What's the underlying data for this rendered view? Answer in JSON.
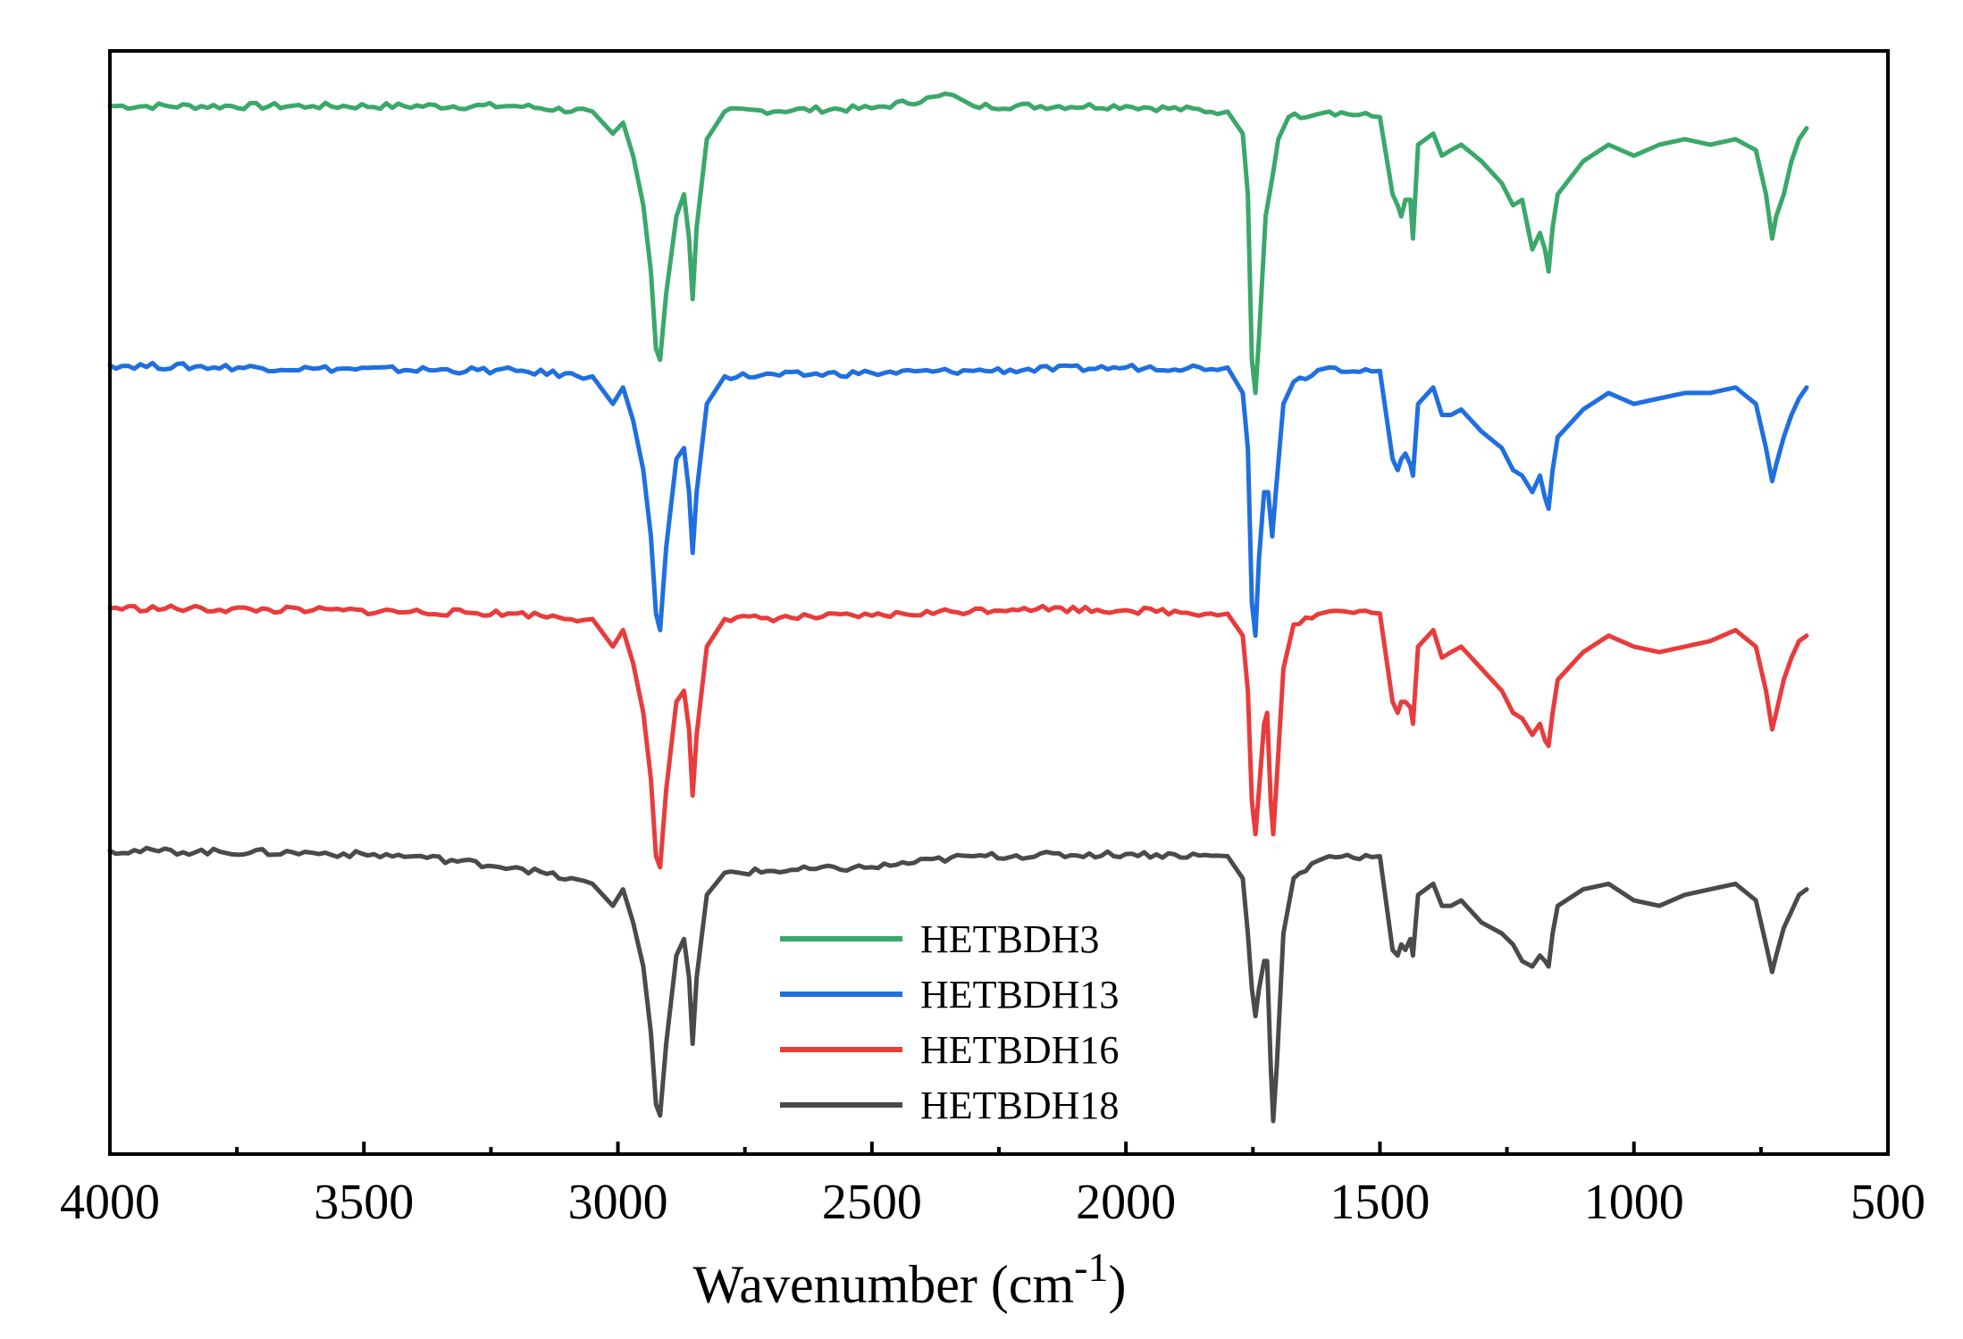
{
  "chart_data": {
    "type": "line",
    "title": "",
    "xlabel": "Wavenumber (cm",
    "xlabel_superscript": "-1",
    "xlabel_suffix": ")",
    "ylabel": "",
    "xlim": [
      4000,
      500
    ],
    "x_reversed": true,
    "x_ticks": [
      4000,
      3500,
      3000,
      2500,
      2000,
      1500,
      1000,
      500
    ],
    "y_ticks_shown": false,
    "grid": false,
    "legend_position": "bottom-center",
    "series": [
      {
        "name": "HETBDH3",
        "color": "#3aa86a",
        "baseline": 0.95,
        "points": [
          [
            4000,
            0.95
          ],
          [
            3600,
            0.95
          ],
          [
            3200,
            0.95
          ],
          [
            3050,
            0.945
          ],
          [
            3010,
            0.925
          ],
          [
            2990,
            0.935
          ],
          [
            2970,
            0.905
          ],
          [
            2950,
            0.86
          ],
          [
            2935,
            0.8
          ],
          [
            2925,
            0.73
          ],
          [
            2917,
            0.72
          ],
          [
            2905,
            0.78
          ],
          [
            2885,
            0.85
          ],
          [
            2870,
            0.87
          ],
          [
            2860,
            0.83
          ],
          [
            2853,
            0.775
          ],
          [
            2845,
            0.84
          ],
          [
            2825,
            0.92
          ],
          [
            2790,
            0.945
          ],
          [
            2500,
            0.948
          ],
          [
            2340,
            0.96
          ],
          [
            2300,
            0.95
          ],
          [
            2000,
            0.95
          ],
          [
            1800,
            0.945
          ],
          [
            1770,
            0.925
          ],
          [
            1760,
            0.87
          ],
          [
            1752,
            0.72
          ],
          [
            1745,
            0.69
          ],
          [
            1738,
            0.74
          ],
          [
            1725,
            0.85
          ],
          [
            1710,
            0.89
          ],
          [
            1700,
            0.92
          ],
          [
            1680,
            0.94
          ],
          [
            1600,
            0.945
          ],
          [
            1500,
            0.94
          ],
          [
            1475,
            0.87
          ],
          [
            1465,
            0.86
          ],
          [
            1458,
            0.85
          ],
          [
            1450,
            0.865
          ],
          [
            1440,
            0.865
          ],
          [
            1435,
            0.83
          ],
          [
            1425,
            0.915
          ],
          [
            1395,
            0.925
          ],
          [
            1378,
            0.905
          ],
          [
            1360,
            0.91
          ],
          [
            1340,
            0.915
          ],
          [
            1300,
            0.9
          ],
          [
            1260,
            0.88
          ],
          [
            1238,
            0.86
          ],
          [
            1220,
            0.865
          ],
          [
            1200,
            0.82
          ],
          [
            1185,
            0.835
          ],
          [
            1175,
            0.82
          ],
          [
            1168,
            0.8
          ],
          [
            1160,
            0.84
          ],
          [
            1150,
            0.87
          ],
          [
            1100,
            0.9
          ],
          [
            1050,
            0.915
          ],
          [
            1000,
            0.905
          ],
          [
            950,
            0.915
          ],
          [
            900,
            0.92
          ],
          [
            850,
            0.915
          ],
          [
            800,
            0.92
          ],
          [
            760,
            0.91
          ],
          [
            740,
            0.87
          ],
          [
            728,
            0.83
          ],
          [
            720,
            0.85
          ],
          [
            705,
            0.87
          ],
          [
            690,
            0.9
          ],
          [
            675,
            0.92
          ],
          [
            660,
            0.93
          ]
        ]
      },
      {
        "name": "HETBDH13",
        "color": "#1f6fe0",
        "baseline": 0.715,
        "points": [
          [
            4000,
            0.715
          ],
          [
            3600,
            0.712
          ],
          [
            3200,
            0.71
          ],
          [
            3050,
            0.705
          ],
          [
            3010,
            0.68
          ],
          [
            2990,
            0.695
          ],
          [
            2970,
            0.665
          ],
          [
            2950,
            0.62
          ],
          [
            2935,
            0.56
          ],
          [
            2925,
            0.49
          ],
          [
            2917,
            0.475
          ],
          [
            2905,
            0.55
          ],
          [
            2885,
            0.63
          ],
          [
            2870,
            0.64
          ],
          [
            2860,
            0.6
          ],
          [
            2853,
            0.545
          ],
          [
            2845,
            0.6
          ],
          [
            2825,
            0.68
          ],
          [
            2790,
            0.705
          ],
          [
            2500,
            0.708
          ],
          [
            2300,
            0.71
          ],
          [
            2000,
            0.713
          ],
          [
            1800,
            0.713
          ],
          [
            1770,
            0.69
          ],
          [
            1760,
            0.64
          ],
          [
            1752,
            0.5
          ],
          [
            1745,
            0.47
          ],
          [
            1738,
            0.54
          ],
          [
            1728,
            0.6
          ],
          [
            1720,
            0.6
          ],
          [
            1712,
            0.56
          ],
          [
            1705,
            0.6
          ],
          [
            1690,
            0.68
          ],
          [
            1670,
            0.7
          ],
          [
            1600,
            0.713
          ],
          [
            1500,
            0.71
          ],
          [
            1475,
            0.63
          ],
          [
            1465,
            0.62
          ],
          [
            1458,
            0.63
          ],
          [
            1450,
            0.635
          ],
          [
            1440,
            0.625
          ],
          [
            1435,
            0.615
          ],
          [
            1425,
            0.68
          ],
          [
            1395,
            0.695
          ],
          [
            1378,
            0.67
          ],
          [
            1360,
            0.67
          ],
          [
            1340,
            0.675
          ],
          [
            1300,
            0.655
          ],
          [
            1260,
            0.64
          ],
          [
            1238,
            0.62
          ],
          [
            1220,
            0.615
          ],
          [
            1200,
            0.6
          ],
          [
            1185,
            0.615
          ],
          [
            1175,
            0.595
          ],
          [
            1168,
            0.585
          ],
          [
            1160,
            0.62
          ],
          [
            1150,
            0.65
          ],
          [
            1100,
            0.675
          ],
          [
            1050,
            0.69
          ],
          [
            1000,
            0.68
          ],
          [
            950,
            0.685
          ],
          [
            900,
            0.69
          ],
          [
            850,
            0.69
          ],
          [
            800,
            0.695
          ],
          [
            760,
            0.68
          ],
          [
            740,
            0.64
          ],
          [
            728,
            0.61
          ],
          [
            720,
            0.625
          ],
          [
            705,
            0.65
          ],
          [
            690,
            0.67
          ],
          [
            675,
            0.685
          ],
          [
            660,
            0.695
          ]
        ]
      },
      {
        "name": "HETBDH16",
        "color": "#e83c3c",
        "baseline": 0.495,
        "points": [
          [
            4000,
            0.495
          ],
          [
            3600,
            0.493
          ],
          [
            3200,
            0.49
          ],
          [
            3050,
            0.485
          ],
          [
            3010,
            0.46
          ],
          [
            2990,
            0.475
          ],
          [
            2970,
            0.445
          ],
          [
            2950,
            0.4
          ],
          [
            2935,
            0.34
          ],
          [
            2925,
            0.27
          ],
          [
            2917,
            0.26
          ],
          [
            2905,
            0.33
          ],
          [
            2885,
            0.41
          ],
          [
            2870,
            0.42
          ],
          [
            2860,
            0.385
          ],
          [
            2853,
            0.325
          ],
          [
            2845,
            0.38
          ],
          [
            2825,
            0.46
          ],
          [
            2790,
            0.485
          ],
          [
            2500,
            0.488
          ],
          [
            2200,
            0.495
          ],
          [
            2000,
            0.493
          ],
          [
            1800,
            0.49
          ],
          [
            1770,
            0.47
          ],
          [
            1760,
            0.42
          ],
          [
            1752,
            0.32
          ],
          [
            1745,
            0.29
          ],
          [
            1738,
            0.33
          ],
          [
            1728,
            0.39
          ],
          [
            1722,
            0.4
          ],
          [
            1715,
            0.32
          ],
          [
            1710,
            0.29
          ],
          [
            1703,
            0.34
          ],
          [
            1690,
            0.44
          ],
          [
            1670,
            0.48
          ],
          [
            1600,
            0.492
          ],
          [
            1500,
            0.49
          ],
          [
            1475,
            0.41
          ],
          [
            1465,
            0.4
          ],
          [
            1458,
            0.41
          ],
          [
            1450,
            0.41
          ],
          [
            1440,
            0.405
          ],
          [
            1435,
            0.39
          ],
          [
            1425,
            0.46
          ],
          [
            1395,
            0.475
          ],
          [
            1378,
            0.45
          ],
          [
            1360,
            0.455
          ],
          [
            1340,
            0.46
          ],
          [
            1300,
            0.44
          ],
          [
            1260,
            0.42
          ],
          [
            1238,
            0.4
          ],
          [
            1220,
            0.395
          ],
          [
            1200,
            0.38
          ],
          [
            1185,
            0.39
          ],
          [
            1175,
            0.375
          ],
          [
            1168,
            0.37
          ],
          [
            1160,
            0.4
          ],
          [
            1150,
            0.43
          ],
          [
            1100,
            0.455
          ],
          [
            1050,
            0.47
          ],
          [
            1000,
            0.46
          ],
          [
            950,
            0.455
          ],
          [
            900,
            0.46
          ],
          [
            850,
            0.465
          ],
          [
            800,
            0.475
          ],
          [
            760,
            0.46
          ],
          [
            740,
            0.42
          ],
          [
            728,
            0.385
          ],
          [
            720,
            0.4
          ],
          [
            705,
            0.43
          ],
          [
            690,
            0.45
          ],
          [
            675,
            0.465
          ],
          [
            660,
            0.47
          ]
        ]
      },
      {
        "name": "HETBDH18",
        "color": "#4a4a4a",
        "baseline": 0.275,
        "points": [
          [
            4000,
            0.275
          ],
          [
            3600,
            0.273
          ],
          [
            3400,
            0.27
          ],
          [
            3200,
            0.26
          ],
          [
            3050,
            0.245
          ],
          [
            3010,
            0.225
          ],
          [
            2990,
            0.24
          ],
          [
            2970,
            0.21
          ],
          [
            2950,
            0.17
          ],
          [
            2935,
            0.11
          ],
          [
            2925,
            0.045
          ],
          [
            2917,
            0.035
          ],
          [
            2905,
            0.1
          ],
          [
            2885,
            0.18
          ],
          [
            2870,
            0.195
          ],
          [
            2860,
            0.16
          ],
          [
            2853,
            0.1
          ],
          [
            2845,
            0.16
          ],
          [
            2825,
            0.235
          ],
          [
            2790,
            0.255
          ],
          [
            2500,
            0.26
          ],
          [
            2300,
            0.27
          ],
          [
            2000,
            0.272
          ],
          [
            1800,
            0.27
          ],
          [
            1770,
            0.25
          ],
          [
            1760,
            0.2
          ],
          [
            1752,
            0.15
          ],
          [
            1745,
            0.125
          ],
          [
            1738,
            0.15
          ],
          [
            1728,
            0.175
          ],
          [
            1722,
            0.175
          ],
          [
            1715,
            0.08
          ],
          [
            1710,
            0.03
          ],
          [
            1703,
            0.08
          ],
          [
            1690,
            0.2
          ],
          [
            1670,
            0.25
          ],
          [
            1600,
            0.27
          ],
          [
            1500,
            0.27
          ],
          [
            1475,
            0.185
          ],
          [
            1465,
            0.18
          ],
          [
            1458,
            0.19
          ],
          [
            1450,
            0.185
          ],
          [
            1440,
            0.195
          ],
          [
            1435,
            0.18
          ],
          [
            1425,
            0.235
          ],
          [
            1395,
            0.245
          ],
          [
            1378,
            0.225
          ],
          [
            1360,
            0.225
          ],
          [
            1340,
            0.23
          ],
          [
            1300,
            0.21
          ],
          [
            1260,
            0.2
          ],
          [
            1238,
            0.19
          ],
          [
            1220,
            0.175
          ],
          [
            1200,
            0.17
          ],
          [
            1185,
            0.18
          ],
          [
            1175,
            0.175
          ],
          [
            1168,
            0.17
          ],
          [
            1160,
            0.2
          ],
          [
            1150,
            0.225
          ],
          [
            1100,
            0.24
          ],
          [
            1050,
            0.245
          ],
          [
            1000,
            0.23
          ],
          [
            950,
            0.225
          ],
          [
            900,
            0.235
          ],
          [
            850,
            0.24
          ],
          [
            800,
            0.245
          ],
          [
            760,
            0.23
          ],
          [
            740,
            0.19
          ],
          [
            728,
            0.165
          ],
          [
            720,
            0.18
          ],
          [
            705,
            0.205
          ],
          [
            690,
            0.22
          ],
          [
            675,
            0.235
          ],
          [
            660,
            0.24
          ]
        ]
      }
    ]
  }
}
